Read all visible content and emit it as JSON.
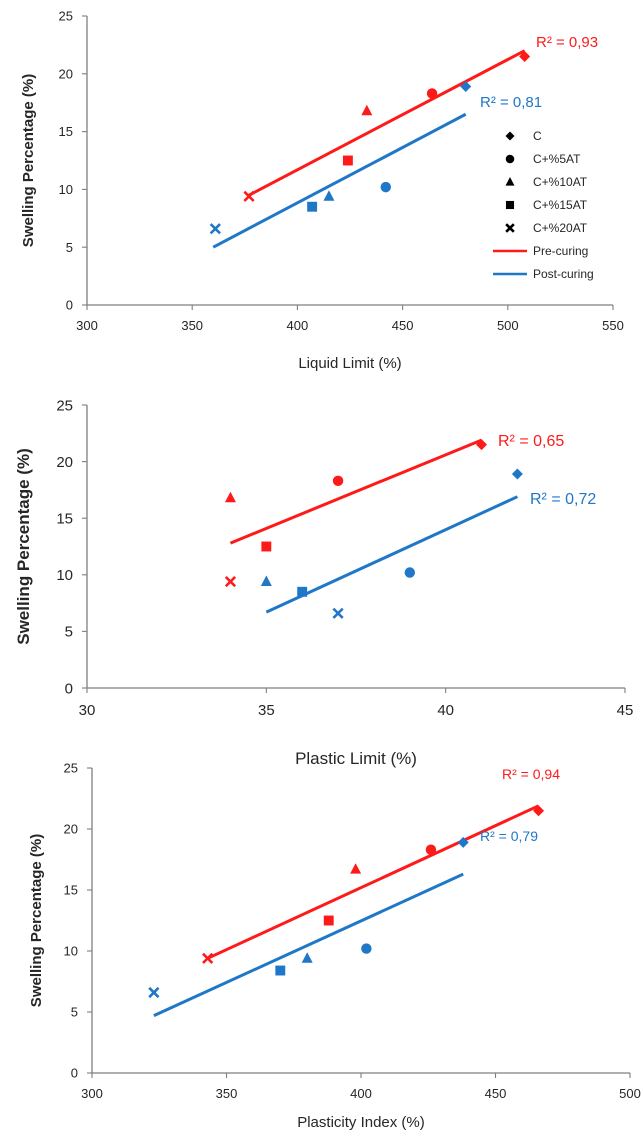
{
  "colors": {
    "pre": "#ff1a1a",
    "post": "#1f77c8",
    "axis": "#7f7f7f",
    "text": "#262626",
    "legend_marker": "#000000"
  },
  "markers": [
    "diamond",
    "circle",
    "triangle",
    "square",
    "x"
  ],
  "chart_data": [
    {
      "type": "scatter",
      "xlabel": "Liquid Limit (%)",
      "ylabel": "Swelling Percentage (%)",
      "xlim": [
        300,
        550
      ],
      "ylim": [
        0,
        25
      ],
      "xticks": [
        300,
        350,
        400,
        450,
        500,
        550
      ],
      "yticks": [
        0,
        5,
        10,
        15,
        20,
        25
      ],
      "legend": "right",
      "series": [
        {
          "name": "C",
          "marker": "diamond",
          "pre": [
            508,
            21.5
          ],
          "post": [
            480,
            18.9
          ]
        },
        {
          "name": "C+%5AT",
          "marker": "circle",
          "pre": [
            464,
            18.3
          ],
          "post": [
            442,
            10.2
          ]
        },
        {
          "name": "C+%10AT",
          "marker": "triangle",
          "pre": [
            433,
            16.8
          ],
          "post": [
            415,
            9.4
          ]
        },
        {
          "name": "C+%15AT",
          "marker": "square",
          "pre": [
            424,
            12.5
          ],
          "post": [
            407,
            8.5
          ]
        },
        {
          "name": "C+%20AT",
          "marker": "x",
          "pre": [
            377,
            9.4
          ],
          "post": [
            361,
            6.6
          ]
        }
      ],
      "trendlines": [
        {
          "name": "Pre-curing",
          "color": "pre",
          "x": [
            377,
            508
          ],
          "y": [
            9.5,
            22.0
          ],
          "r2": "R² = 0,93"
        },
        {
          "name": "Post-curing",
          "color": "post",
          "x": [
            360,
            480
          ],
          "y": [
            5.0,
            16.5
          ],
          "r2": "R² = 0,81"
        }
      ]
    },
    {
      "type": "scatter",
      "xlabel": "Plastic Limit (%)",
      "ylabel": "Swelling Percentage (%)",
      "xlim": [
        30,
        45
      ],
      "ylim": [
        0,
        25
      ],
      "xticks": [
        30,
        35,
        40,
        45
      ],
      "yticks": [
        0,
        5,
        10,
        15,
        20,
        25
      ],
      "series": [
        {
          "name": "C",
          "marker": "diamond",
          "pre": [
            41,
            21.5
          ],
          "post": [
            42,
            18.9
          ]
        },
        {
          "name": "C+%5AT",
          "marker": "circle",
          "pre": [
            37,
            18.3
          ],
          "post": [
            39,
            10.2
          ]
        },
        {
          "name": "C+%10AT",
          "marker": "triangle",
          "pre": [
            34,
            16.8
          ],
          "post": [
            35,
            9.4
          ]
        },
        {
          "name": "C+%15AT",
          "marker": "square",
          "pre": [
            35,
            12.5
          ],
          "post": [
            36,
            8.5
          ]
        },
        {
          "name": "C+%20AT",
          "marker": "x",
          "pre": [
            34,
            9.4
          ],
          "post": [
            37,
            6.6
          ]
        }
      ],
      "trendlines": [
        {
          "name": "Pre-curing",
          "color": "pre",
          "x": [
            34,
            41
          ],
          "y": [
            12.8,
            21.9
          ],
          "r2": "R² = 0,65"
        },
        {
          "name": "Post-curing",
          "color": "post",
          "x": [
            35,
            42
          ],
          "y": [
            6.7,
            16.9
          ],
          "r2": "R² = 0,72"
        }
      ]
    },
    {
      "type": "scatter",
      "xlabel": "Plasticity Index (%)",
      "ylabel": "Swelling Percentage (%)",
      "xlim": [
        300,
        500
      ],
      "ylim": [
        0,
        25
      ],
      "xticks": [
        300,
        350,
        400,
        450,
        500
      ],
      "yticks": [
        0,
        5,
        10,
        15,
        20,
        25
      ],
      "series": [
        {
          "name": "C",
          "marker": "diamond",
          "pre": [
            466,
            21.5
          ],
          "post": [
            438,
            18.9
          ]
        },
        {
          "name": "C+%5AT",
          "marker": "circle",
          "pre": [
            426,
            18.3
          ],
          "post": [
            402,
            10.2
          ]
        },
        {
          "name": "C+%10AT",
          "marker": "triangle",
          "pre": [
            398,
            16.7
          ],
          "post": [
            380,
            9.4
          ]
        },
        {
          "name": "C+%15AT",
          "marker": "square",
          "pre": [
            388,
            12.5
          ],
          "post": [
            370,
            8.4
          ]
        },
        {
          "name": "C+%20AT",
          "marker": "x",
          "pre": [
            343,
            9.4
          ],
          "post": [
            323,
            6.6
          ]
        }
      ],
      "trendlines": [
        {
          "name": "Pre-curing",
          "color": "pre",
          "x": [
            343,
            466
          ],
          "y": [
            9.4,
            21.9
          ],
          "r2": "R² = 0,94"
        },
        {
          "name": "Post-curing",
          "color": "post",
          "x": [
            323,
            438
          ],
          "y": [
            4.7,
            16.3
          ],
          "r2": "R² = 0,79"
        }
      ]
    }
  ],
  "legend": {
    "markers": [
      {
        "label": "C",
        "marker": "diamond"
      },
      {
        "label": "C+%5AT",
        "marker": "circle"
      },
      {
        "label": "C+%10AT",
        "marker": "triangle"
      },
      {
        "label": "C+%15AT",
        "marker": "square"
      },
      {
        "label": "C+%20AT",
        "marker": "x"
      }
    ],
    "lines": [
      {
        "label": "Pre-curing",
        "color": "pre"
      },
      {
        "label": "Post-curing",
        "color": "post"
      }
    ]
  }
}
